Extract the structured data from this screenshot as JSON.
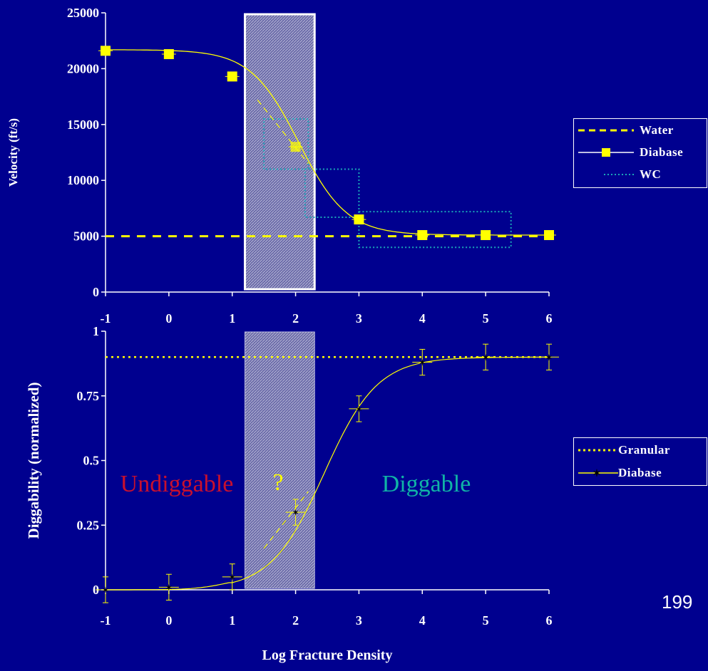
{
  "colors": {
    "background": "#00008f",
    "water_line": "#ffff00",
    "diabase": "#ffff00",
    "wc": "#1aa6b8",
    "undiggable": "#c8102e",
    "diggable": "#10b4a6",
    "question": "#ffff00",
    "shaded_band": "#7a7ab0"
  },
  "slide_number": "199",
  "chart_data": [
    {
      "type": "line",
      "panel": "top",
      "title": "",
      "xlabel": "",
      "ylabel": "Velocity (ft/s)",
      "xlim": [
        -1,
        6
      ],
      "ylim": [
        0,
        25000
      ],
      "x_ticks": [
        "-1",
        "0",
        "1",
        "2",
        "3",
        "4",
        "5",
        "6"
      ],
      "y_ticks": [
        "0",
        "5000",
        "10000",
        "15000",
        "20000",
        "25000"
      ],
      "shaded_region_x": [
        1.2,
        2.3
      ],
      "grid": false,
      "legend_position": "right",
      "series": [
        {
          "name": "Water",
          "style": "dashed",
          "x": [
            -1,
            6
          ],
          "y": [
            5000,
            5000
          ]
        },
        {
          "name": "Diabase",
          "style": "solid-square",
          "x": [
            -1,
            0,
            1,
            2,
            3,
            4,
            5,
            6
          ],
          "y": [
            21600,
            21300,
            19300,
            13000,
            6500,
            5100,
            5100,
            5100
          ]
        },
        {
          "name": "WC",
          "style": "dotted",
          "boxes": [
            {
              "x": [
                1.5,
                2.2
              ],
              "y": [
                11000,
                15500
              ]
            },
            {
              "x": [
                2.15,
                3.0
              ],
              "y": [
                6700,
                11000
              ]
            },
            {
              "x": [
                3.0,
                5.4
              ],
              "y": [
                4000,
                7200
              ]
            }
          ]
        }
      ]
    },
    {
      "type": "line",
      "panel": "bottom",
      "title": "",
      "xlabel": "Log Fracture Density",
      "ylabel": "Diggability (normalized)",
      "xlim": [
        -1,
        6
      ],
      "ylim": [
        0,
        1
      ],
      "x_ticks": [
        "-1",
        "0",
        "1",
        "2",
        "3",
        "4",
        "5",
        "6"
      ],
      "y_ticks": [
        "0",
        "0.25",
        "0.5",
        "0.75",
        "1"
      ],
      "shaded_region_x": [
        1.2,
        2.3
      ],
      "grid": false,
      "legend_position": "right",
      "annotations": [
        "Undiggable",
        "?",
        "Diggable"
      ],
      "series": [
        {
          "name": "Granular",
          "style": "dotted",
          "x": [
            -1,
            6
          ],
          "y": [
            0.9,
            0.9
          ]
        },
        {
          "name": "Diabase",
          "style": "solid-star",
          "x": [
            -1,
            0,
            1,
            2,
            3,
            4,
            5,
            6
          ],
          "y": [
            0,
            0.01,
            0.05,
            0.3,
            0.7,
            0.88,
            0.9,
            0.9
          ]
        }
      ]
    }
  ]
}
